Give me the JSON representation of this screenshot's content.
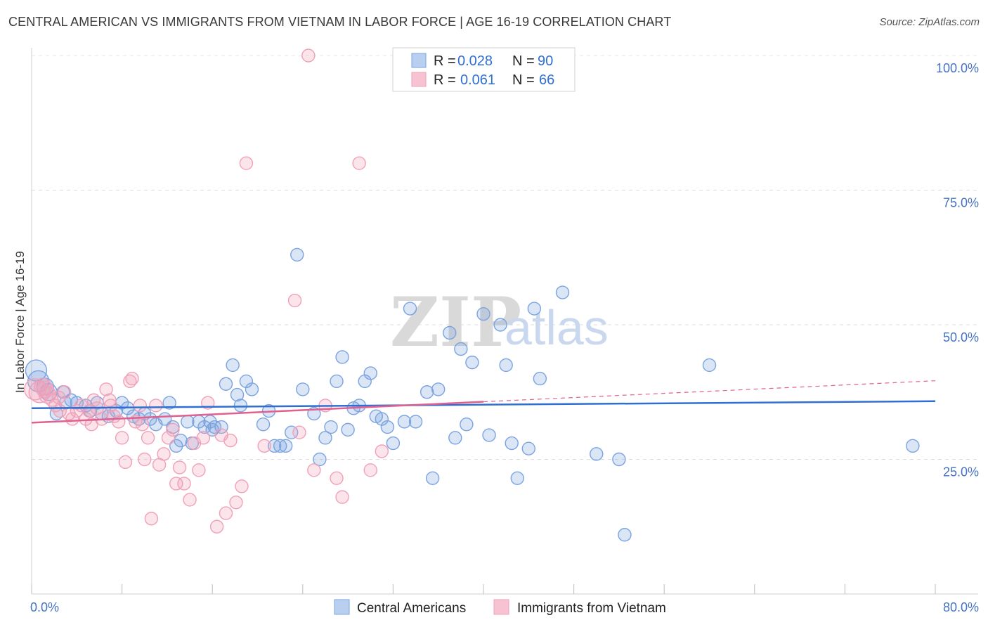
{
  "title": "CENTRAL AMERICAN VS IMMIGRANTS FROM VIETNAM IN LABOR FORCE | AGE 16-19 CORRELATION CHART",
  "source": "Source: ZipAtlas.com",
  "watermark": {
    "zip": "ZIP",
    "atlas": "atlas"
  },
  "chart_data": {
    "type": "scatter",
    "ylabel": "In Labor Force | Age 16-19",
    "xlim": [
      0,
      80
    ],
    "ylim": [
      0,
      100
    ],
    "x_tick_labels": [
      "0.0%",
      "80.0%"
    ],
    "y_ticks": [
      25,
      50,
      75,
      100
    ],
    "y_tick_labels": [
      "25.0%",
      "50.0%",
      "75.0%",
      "100.0%"
    ],
    "grid": true,
    "legend": {
      "entries": [
        {
          "r_label": "R =",
          "r_value": "0.028",
          "n_label": "N =",
          "n_value": "90"
        },
        {
          "r_label": "R =",
          "r_value": "0.061",
          "n_label": "N =",
          "n_value": "66"
        }
      ]
    },
    "series": [
      {
        "name": "Central Americans",
        "color": "#7ba3e0",
        "line_color": "#2f6fd1",
        "trend": {
          "x": [
            0,
            80
          ],
          "y": [
            34.5,
            35.8
          ]
        },
        "points": [
          [
            0.4,
            41.5
          ],
          [
            0.6,
            39.5
          ],
          [
            1.2,
            38.5
          ],
          [
            1.5,
            37.5
          ],
          [
            2.2,
            33.5
          ],
          [
            2.8,
            37.5
          ],
          [
            3.5,
            36
          ],
          [
            4,
            35.5
          ],
          [
            4.8,
            35
          ],
          [
            5.2,
            34
          ],
          [
            5.8,
            35.5
          ],
          [
            6.2,
            33.5
          ],
          [
            6.8,
            33
          ],
          [
            7.5,
            34
          ],
          [
            8,
            35.5
          ],
          [
            8.5,
            34.5
          ],
          [
            9,
            33
          ],
          [
            9.5,
            32.5
          ],
          [
            10,
            33.5
          ],
          [
            10.5,
            32.5
          ],
          [
            11,
            31.5
          ],
          [
            11.8,
            32.5
          ],
          [
            12.2,
            35.5
          ],
          [
            12.5,
            31
          ],
          [
            12.8,
            27.5
          ],
          [
            13.2,
            28.5
          ],
          [
            13.8,
            32
          ],
          [
            14.2,
            28
          ],
          [
            14.8,
            32
          ],
          [
            15.3,
            31
          ],
          [
            15.8,
            32
          ],
          [
            16.2,
            31
          ],
          [
            16.8,
            31
          ],
          [
            17.2,
            39
          ],
          [
            17.8,
            42.5
          ],
          [
            18.2,
            37
          ],
          [
            18.5,
            35
          ],
          [
            19,
            39.5
          ],
          [
            19.5,
            38
          ],
          [
            20.5,
            31.5
          ],
          [
            21,
            34
          ],
          [
            21.5,
            27.5
          ],
          [
            22,
            27.5
          ],
          [
            22.5,
            27.5
          ],
          [
            23,
            30
          ],
          [
            23.5,
            63
          ],
          [
            24,
            38
          ],
          [
            25,
            33.5
          ],
          [
            25.5,
            25
          ],
          [
            26,
            29
          ],
          [
            26.5,
            31
          ],
          [
            27,
            39.5
          ],
          [
            27.5,
            44
          ],
          [
            28,
            30.5
          ],
          [
            28.5,
            34.5
          ],
          [
            29,
            35
          ],
          [
            29.5,
            39.5
          ],
          [
            30,
            41
          ],
          [
            30.5,
            33
          ],
          [
            31,
            32.5
          ],
          [
            31.5,
            31
          ],
          [
            32,
            28
          ],
          [
            33,
            32
          ],
          [
            33.5,
            53
          ],
          [
            34,
            32
          ],
          [
            35,
            37.5
          ],
          [
            35.5,
            21.5
          ],
          [
            36,
            38
          ],
          [
            37,
            48.5
          ],
          [
            37.5,
            29
          ],
          [
            38,
            45.5
          ],
          [
            38.5,
            31.5
          ],
          [
            39,
            43
          ],
          [
            40,
            52
          ],
          [
            40.5,
            29.5
          ],
          [
            41.5,
            50
          ],
          [
            42,
            42.5
          ],
          [
            42.5,
            28
          ],
          [
            43,
            21.5
          ],
          [
            44,
            27
          ],
          [
            44.5,
            53
          ],
          [
            45,
            40
          ],
          [
            47,
            56
          ],
          [
            50,
            26
          ],
          [
            52,
            25
          ],
          [
            52.5,
            11
          ],
          [
            60,
            42.5
          ],
          [
            78,
            27.5
          ],
          [
            3,
            35.5
          ],
          [
            16,
            30.5
          ]
        ]
      },
      {
        "name": "Immigrants from Vietnam",
        "color": "#f0a0b8",
        "line_color": "#e06090",
        "trend": {
          "x": [
            0,
            40
          ],
          "y": [
            31.8,
            35.7
          ]
        },
        "trend_dashed": {
          "x": [
            40,
            80
          ],
          "y": [
            35.7,
            39.6
          ]
        },
        "points": [
          [
            0.3,
            38
          ],
          [
            0.7,
            37.5
          ],
          [
            1,
            38.5
          ],
          [
            1.4,
            37
          ],
          [
            1.8,
            36
          ],
          [
            2.1,
            35
          ],
          [
            2.5,
            34
          ],
          [
            2.9,
            37.5
          ],
          [
            3.3,
            33.5
          ],
          [
            3.6,
            32.5
          ],
          [
            4,
            34
          ],
          [
            4.4,
            35
          ],
          [
            4.8,
            32.5
          ],
          [
            5.1,
            34
          ],
          [
            5.5,
            36
          ],
          [
            5.8,
            34.5
          ],
          [
            6.2,
            32.5
          ],
          [
            6.6,
            38
          ],
          [
            7,
            35
          ],
          [
            7.3,
            33
          ],
          [
            7.7,
            32
          ],
          [
            8,
            29
          ],
          [
            8.3,
            24.5
          ],
          [
            8.7,
            39.5
          ],
          [
            9.2,
            32
          ],
          [
            9.6,
            35
          ],
          [
            10,
            25
          ],
          [
            10.3,
            29
          ],
          [
            10.6,
            14
          ],
          [
            11,
            35
          ],
          [
            11.3,
            24
          ],
          [
            11.7,
            26
          ],
          [
            12.1,
            29
          ],
          [
            12.5,
            30.5
          ],
          [
            12.8,
            20.5
          ],
          [
            13.1,
            23.5
          ],
          [
            13.5,
            20.5
          ],
          [
            14,
            17.5
          ],
          [
            14.4,
            28
          ],
          [
            14.8,
            23
          ],
          [
            15.2,
            29
          ],
          [
            15.6,
            35.5
          ],
          [
            16.4,
            12.5
          ],
          [
            16.8,
            29.5
          ],
          [
            17.2,
            15
          ],
          [
            17.6,
            28.5
          ],
          [
            18.1,
            17
          ],
          [
            18.6,
            20
          ],
          [
            19,
            80
          ],
          [
            20.6,
            27.5
          ],
          [
            23.3,
            54.5
          ],
          [
            23.7,
            30
          ],
          [
            24.5,
            100
          ],
          [
            25,
            23
          ],
          [
            26,
            35
          ],
          [
            27,
            21.5
          ],
          [
            27.5,
            18
          ],
          [
            29,
            80
          ],
          [
            30,
            23
          ],
          [
            31,
            26.5
          ],
          [
            1.2,
            38
          ],
          [
            2.4,
            36.5
          ],
          [
            5.3,
            31.5
          ],
          [
            6.9,
            36
          ],
          [
            8.9,
            40
          ],
          [
            9.8,
            31.5
          ]
        ]
      }
    ]
  }
}
